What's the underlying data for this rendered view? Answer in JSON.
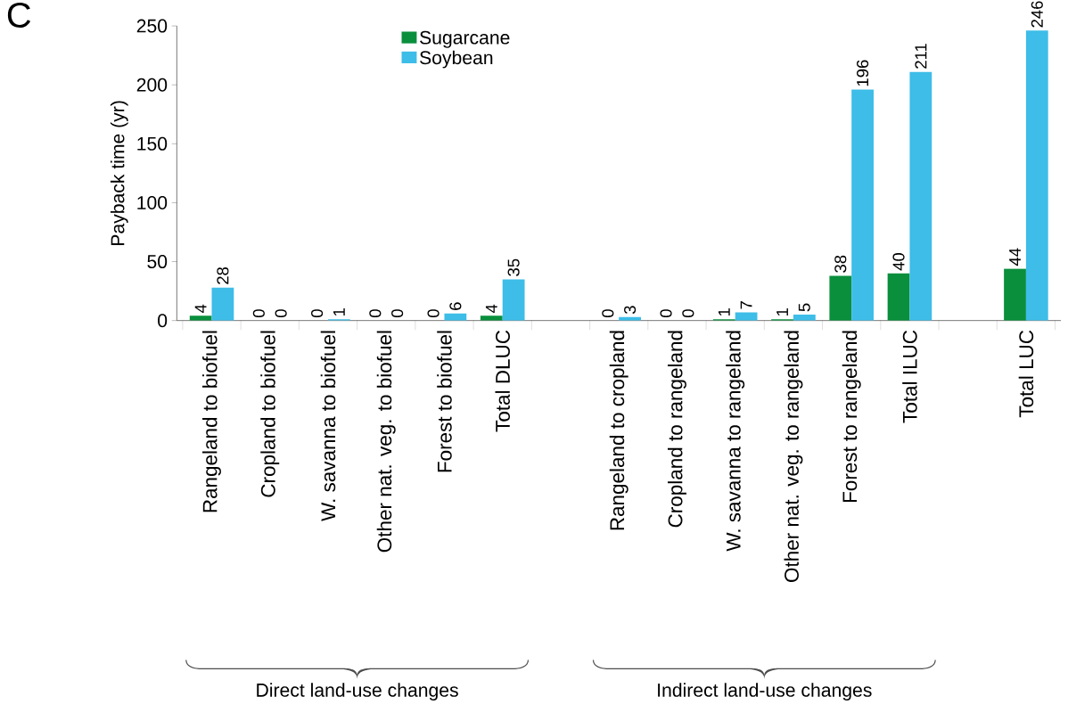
{
  "chart_data": {
    "type": "bar",
    "title": "C",
    "ylabel": "Payback time (yr)",
    "categories": [
      "Rangeland to biofuel",
      "Cropland to biofuel",
      "W. savanna to biofuel",
      "Other nat. veg. to biofuel",
      "Forest to biofuel",
      "Total DLUC",
      null,
      "Rangeland to cropland",
      "Cropland to rangeland",
      "W. savanna to rangeland",
      "Other nat. veg. to rangeland",
      "Forest to rangeland",
      "Total ILUC",
      null,
      "Total LUC"
    ],
    "series": [
      {
        "name": "Sugarcane",
        "color": "#0a8f3c",
        "values": [
          4,
          0,
          0,
          0,
          0,
          4,
          null,
          0,
          0,
          1,
          1,
          38,
          40,
          null,
          44
        ]
      },
      {
        "name": "Soybean",
        "color": "#3dbde8",
        "values": [
          28,
          0,
          1,
          0,
          6,
          35,
          null,
          3,
          0,
          7,
          5,
          196,
          211,
          null,
          246
        ]
      }
    ],
    "ylim": [
      0,
      250
    ],
    "yticks": [
      0,
      50,
      100,
      150,
      200,
      250
    ],
    "data_labels": true,
    "legend": "top left",
    "annotations": [
      "Direct land-use changes",
      "Indirect land-use changes"
    ]
  }
}
